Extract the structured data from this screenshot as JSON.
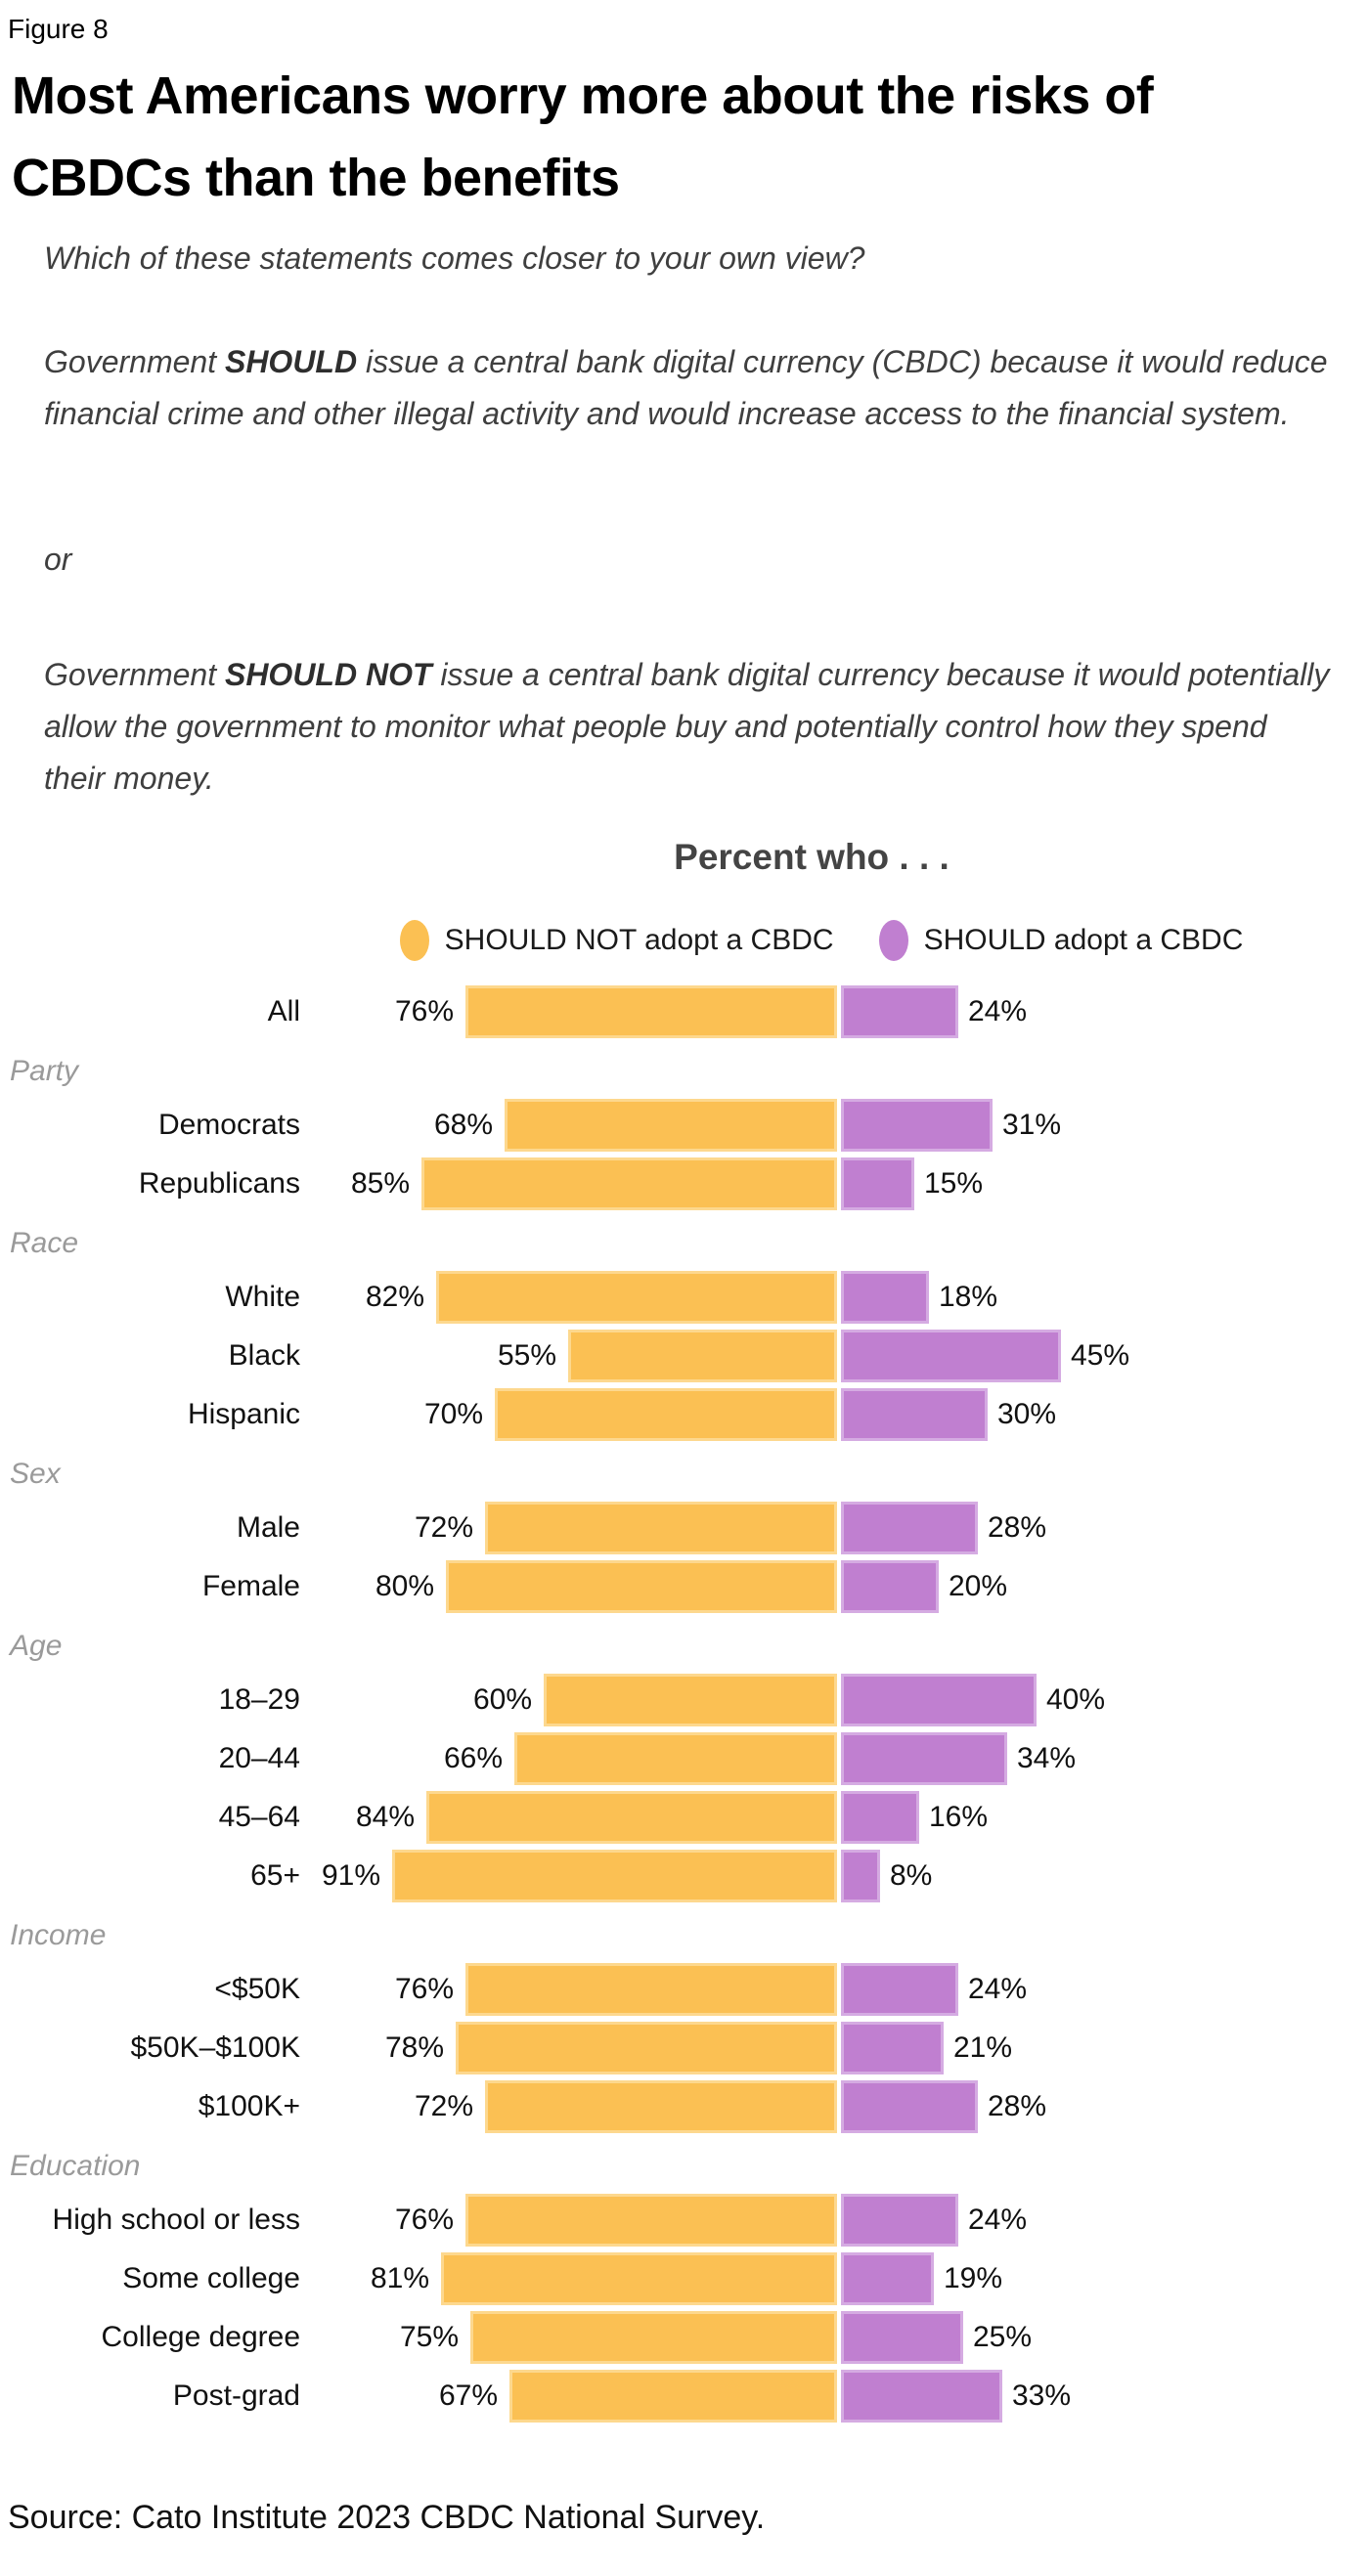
{
  "figure_label": "Figure 8",
  "title_line1": "Most Americans worry more about the risks of",
  "title_line2": "CBDCs than the benefits",
  "question_intro": "Which of these statements comes closer to your own view?",
  "statement_should": {
    "pre": "Government ",
    "emph": "SHOULD",
    "post": " issue a central bank digital currency (CBDC) because it would reduce financial crime and other illegal activity and would increase access to the financial system."
  },
  "or_divider": "or",
  "statement_should_not": {
    "pre": "Government ",
    "emph": "SHOULD NOT",
    "post": " issue a central bank digital currency because it would potentially allow the government to monitor what people buy and potentially control how they spend their money."
  },
  "source": "Source: Cato Institute 2023 CBDC National Survey.",
  "colors": {
    "should_not_fill": "#FBC053",
    "should_not_border": "#FDD88E",
    "should_fill": "#C07FD0",
    "should_border": "#D5ABE2"
  },
  "chart_data": {
    "type": "bar",
    "orientation": "horizontal-diverging",
    "title": "Percent who . . .",
    "unit": "percent",
    "value_range": [
      0,
      100
    ],
    "legend": [
      {
        "label": "SHOULD NOT adopt a CBDC",
        "color": "#FBC053"
      },
      {
        "label": "SHOULD adopt a CBDC",
        "color": "#C07FD0"
      }
    ],
    "series_names": [
      "SHOULD NOT adopt a CBDC",
      "SHOULD adopt a CBDC"
    ],
    "groups": [
      {
        "label": "",
        "rows": [
          {
            "category": "All",
            "should_not": 76,
            "should": 24
          }
        ]
      },
      {
        "label": "Party",
        "rows": [
          {
            "category": "Democrats",
            "should_not": 68,
            "should": 31
          },
          {
            "category": "Republicans",
            "should_not": 85,
            "should": 15
          }
        ]
      },
      {
        "label": "Race",
        "rows": [
          {
            "category": "White",
            "should_not": 82,
            "should": 18
          },
          {
            "category": "Black",
            "should_not": 55,
            "should": 45
          },
          {
            "category": "Hispanic",
            "should_not": 70,
            "should": 30
          }
        ]
      },
      {
        "label": "Sex",
        "rows": [
          {
            "category": "Male",
            "should_not": 72,
            "should": 28
          },
          {
            "category": "Female",
            "should_not": 80,
            "should": 20
          }
        ]
      },
      {
        "label": "Age",
        "rows": [
          {
            "category": "18–29",
            "should_not": 60,
            "should": 40
          },
          {
            "category": "20–44",
            "should_not": 66,
            "should": 34
          },
          {
            "category": "45–64",
            "should_not": 84,
            "should": 16
          },
          {
            "category": "65+",
            "should_not": 91,
            "should": 8
          }
        ]
      },
      {
        "label": "Income",
        "rows": [
          {
            "category": "<$50K",
            "should_not": 76,
            "should": 24
          },
          {
            "category": "$50K–$100K",
            "should_not": 78,
            "should": 21
          },
          {
            "category": "$100K+",
            "should_not": 72,
            "should": 28
          }
        ]
      },
      {
        "label": "Education",
        "rows": [
          {
            "category": "High school or less",
            "should_not": 76,
            "should": 24
          },
          {
            "category": "Some college",
            "should_not": 81,
            "should": 19
          },
          {
            "category": "College degree",
            "should_not": 75,
            "should": 25
          },
          {
            "category": "Post-grad",
            "should_not": 67,
            "should": 33
          }
        ]
      }
    ]
  }
}
